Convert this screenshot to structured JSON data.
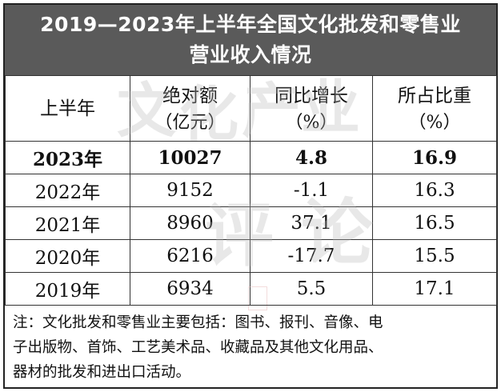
{
  "title": {
    "line1": "2019—2023年上半年全国文化批发和零售业",
    "line2": "营业收入情况"
  },
  "table": {
    "headers": [
      {
        "main": "上半年",
        "unit": ""
      },
      {
        "main": "绝对额",
        "unit": "（亿元）"
      },
      {
        "main": "同比增长",
        "unit": "（%）"
      },
      {
        "main": "所占比重",
        "unit": "（%）"
      }
    ],
    "rows": [
      {
        "year": "2023年",
        "amount": "10027",
        "growth": "4.8",
        "share": "16.9"
      },
      {
        "year": "2022年",
        "amount": "9152",
        "growth": "-1.1",
        "share": "16.3"
      },
      {
        "year": "2021年",
        "amount": "8960",
        "growth": "37.1",
        "share": "16.5"
      },
      {
        "year": "2020年",
        "amount": "6216",
        "growth": "-17.7",
        "share": "15.5"
      },
      {
        "year": "2019年",
        "amount": "6934",
        "growth": "5.5",
        "share": "17.1"
      }
    ]
  },
  "note": {
    "line1": "注：文化批发和零售业主要包括：图书、报刊、音像、电",
    "line2": "子出版物、首饰、工艺美术品、收藏品及其他文化用品、",
    "line3": "器材的批发和进出口活动。"
  },
  "watermark": {
    "text": "文化产业评论"
  },
  "colors": {
    "title_bg": "#5a5a5a",
    "title_text": "#ffffff",
    "border": "#333333",
    "watermark": "#b9b9b9"
  }
}
